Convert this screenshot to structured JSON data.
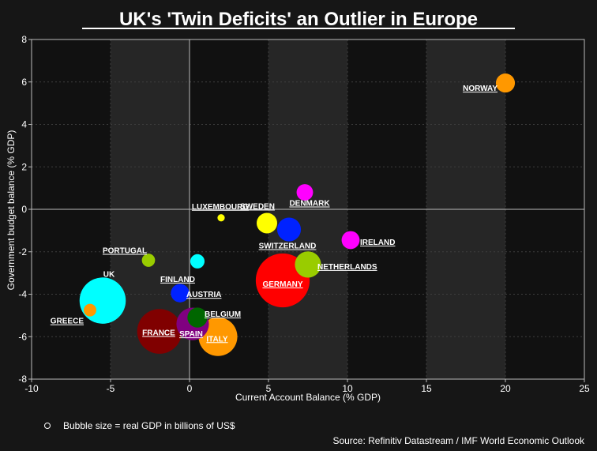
{
  "chart_data": {
    "type": "scatter",
    "title": "UK's 'Twin Deficits' an Outlier in Europe",
    "xlabel": "Current Account Balance (% GDP)",
    "ylabel": "Government budget balance (% GDP)",
    "xlim": [
      -10,
      25
    ],
    "ylim": [
      -8,
      8
    ],
    "xticks": [
      -10,
      -5,
      0,
      5,
      10,
      15,
      20,
      25
    ],
    "yticks": [
      -8,
      -6,
      -4,
      -2,
      0,
      2,
      4,
      6,
      8
    ],
    "grid": true,
    "shaded_x_bands": [
      [
        -5,
        0
      ],
      [
        5,
        10
      ],
      [
        15,
        20
      ]
    ],
    "points": [
      {
        "name": "NORWAY",
        "x": 20.0,
        "y": 5.95,
        "color": "#ff9800",
        "gdp": 480
      },
      {
        "name": "DENMARK",
        "x": 7.3,
        "y": 0.8,
        "color": "#ff00ff",
        "gdp": 360
      },
      {
        "name": "SWEDEN",
        "x": 4.9,
        "y": -0.65,
        "color": "#ffff00",
        "gdp": 560
      },
      {
        "name": "SWITZERLAND",
        "x": 6.3,
        "y": -0.95,
        "color": "#0022ff",
        "gdp": 750
      },
      {
        "name": "LUXEMBOURG",
        "x": 2.0,
        "y": -0.4,
        "color": "#ffff00",
        "gdp": 70
      },
      {
        "name": "IRELAND",
        "x": 10.2,
        "y": -1.45,
        "color": "#ff00ff",
        "gdp": 430
      },
      {
        "name": "PORTUGAL",
        "x": -2.6,
        "y": -2.4,
        "color": "#99cc00",
        "gdp": 230
      },
      {
        "name": "FINLAND",
        "x": 0.5,
        "y": -2.45,
        "color": "#00ffff",
        "gdp": 270
      },
      {
        "name": "NETHERLANDS",
        "x": 7.5,
        "y": -2.6,
        "color": "#99cc00",
        "gdp": 910
      },
      {
        "name": "GERMANY",
        "x": 5.9,
        "y": -3.35,
        "color": "#ff0000",
        "gdp": 3850
      },
      {
        "name": "UK",
        "x": -5.5,
        "y": -4.3,
        "color": "#00ffff",
        "gdp": 2830
      },
      {
        "name": "AUSTRIA",
        "x": -0.6,
        "y": -3.95,
        "color": "#0022ff",
        "gdp": 450
      },
      {
        "name": "GREECE",
        "x": -6.3,
        "y": -4.75,
        "color": "#ff9800",
        "gdp": 210
      },
      {
        "name": "SPAIN",
        "x": 0.2,
        "y": -5.4,
        "color": "#800080",
        "gdp": 1400
      },
      {
        "name": "BELGIUM",
        "x": 0.5,
        "y": -5.1,
        "color": "#006600",
        "gdp": 530
      },
      {
        "name": "FRANCE",
        "x": -1.9,
        "y": -5.75,
        "color": "#800000",
        "gdp": 2650
      },
      {
        "name": "ITALY",
        "x": 1.8,
        "y": -6.0,
        "color": "#ff9800",
        "gdp": 1990
      }
    ],
    "legend_note": "Bubble size = real GDP in billions of US$",
    "source": "Source: Refinitiv Datastream / IMF World Economic Outlook"
  }
}
